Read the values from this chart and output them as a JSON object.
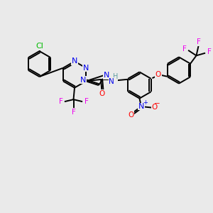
{
  "background_color": "#EAEAEA",
  "bond_color": "#000000",
  "bond_width": 1.4,
  "colors": {
    "N": "#0000EE",
    "O": "#FF0000",
    "Cl": "#00BB00",
    "F": "#EE00EE",
    "H": "#5F9EA0",
    "charge_plus": "#0000EE",
    "charge_minus": "#FF0000"
  },
  "font_size": 7.5
}
